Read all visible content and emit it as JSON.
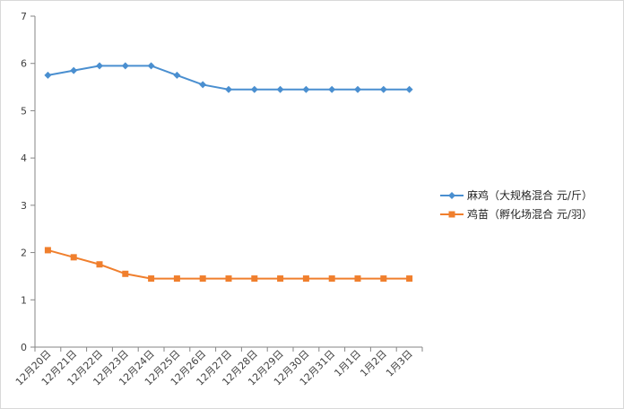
{
  "chart_data": {
    "type": "line",
    "title": "",
    "xlabel": "",
    "ylabel": "",
    "categories": [
      "12月20日",
      "12月21日",
      "12月22日",
      "12月23日",
      "12月24日",
      "12月25日",
      "12月26日",
      "12月27日",
      "12月28日",
      "12月29日",
      "12月30日",
      "12月31日",
      "1月1日",
      "1月2日",
      "1月3日"
    ],
    "ylim": [
      0,
      7
    ],
    "yticks": [
      "0",
      "1",
      "2",
      "3",
      "4",
      "5",
      "6",
      "7"
    ],
    "grid": false,
    "legend_position": "right",
    "series": [
      {
        "name": "麻鸡（大规格混合 元/斤）",
        "color": "#4a8fd0",
        "marker": "diamond",
        "values": [
          5.75,
          5.85,
          5.95,
          5.95,
          5.95,
          5.75,
          5.55,
          5.45,
          5.45,
          5.45,
          5.45,
          5.45,
          5.45,
          5.45,
          5.45
        ]
      },
      {
        "name": "鸡苗（孵化场混合 元/羽）",
        "color": "#f07f2d",
        "marker": "square",
        "values": [
          2.05,
          1.9,
          1.75,
          1.55,
          1.45,
          1.45,
          1.45,
          1.45,
          1.45,
          1.45,
          1.45,
          1.45,
          1.45,
          1.45,
          1.45
        ]
      }
    ]
  }
}
